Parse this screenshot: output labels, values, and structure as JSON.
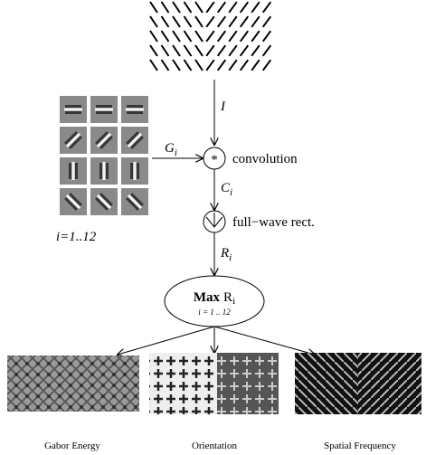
{
  "input_label": "I",
  "filters": {
    "name": "G",
    "index": "i",
    "range": "i=1..12"
  },
  "convolution": {
    "symbol": "*",
    "label": "convolution"
  },
  "convolved": {
    "name": "C",
    "index": "i"
  },
  "rectification": {
    "label": "full−wave rect."
  },
  "rectified": {
    "name": "R",
    "index": "i"
  },
  "max": {
    "operator": "Max",
    "name": "R",
    "index": "i",
    "range": "i = 1 .. 12"
  },
  "outputs": [
    "Gabor Energy",
    "Orientation",
    "Spatial Frequency"
  ]
}
